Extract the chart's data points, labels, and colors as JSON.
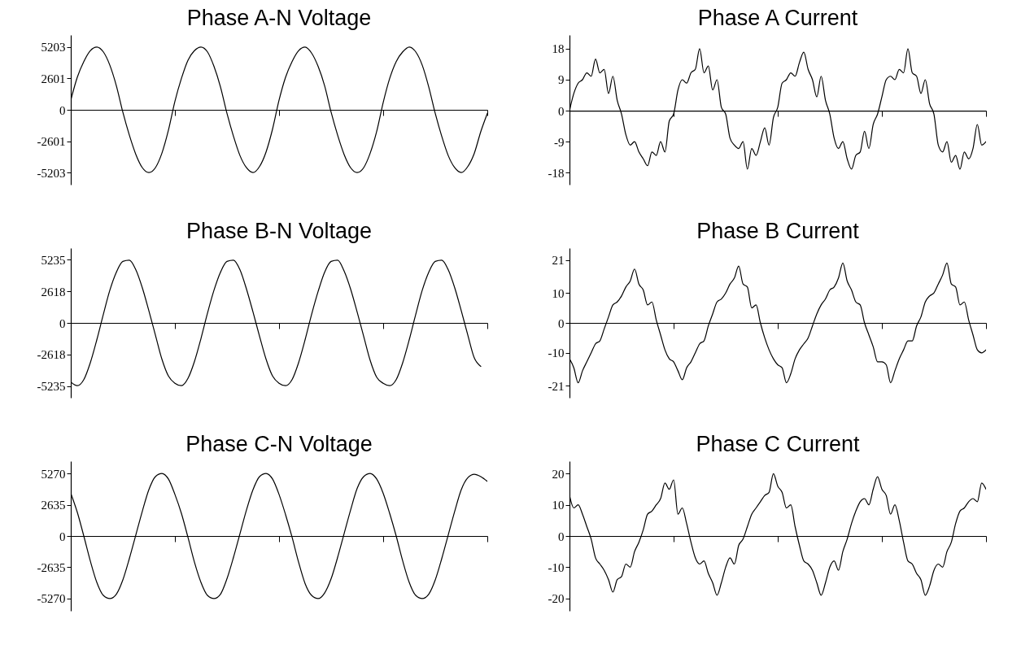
{
  "chart_data": [
    {
      "type": "line",
      "title": "Phase A-N Voltage",
      "tick_labels": "y",
      "color": "#000000",
      "ylim": [
        -6200,
        6200
      ],
      "yticks": [
        -5203,
        -2601,
        0,
        2601,
        5203
      ],
      "categories": [
        null,
        null,
        null,
        null,
        null,
        null,
        null,
        null,
        null,
        null,
        null,
        null,
        null,
        null,
        null,
        null,
        null,
        null,
        null,
        null,
        null,
        null,
        null,
        null,
        null,
        null,
        null,
        null,
        null,
        null,
        null,
        null,
        null,
        null,
        null,
        null,
        null,
        null,
        null,
        null,
        null,
        null,
        null,
        null,
        null,
        null,
        null,
        null,
        null,
        null,
        null,
        null,
        null,
        null,
        null,
        null,
        null,
        null,
        null,
        null,
        null,
        null,
        null,
        null,
        null
      ],
      "values": [
        800,
        2700,
        4000,
        4900,
        5200,
        4800,
        3700,
        2000,
        -200,
        -2100,
        -3700,
        -4800,
        -5200,
        -4800,
        -3600,
        -1700,
        700,
        2600,
        4100,
        4900,
        5200,
        4800,
        3600,
        1900,
        -300,
        -2200,
        -3800,
        -4800,
        -5200,
        -4700,
        -3500,
        -1600,
        800,
        2700,
        4000,
        4900,
        5200,
        4700,
        3600,
        2000,
        -200,
        -2100,
        -3700,
        -4800,
        -5200,
        -4800,
        -3600,
        -1800,
        600,
        2600,
        4000,
        4800,
        5200,
        4800,
        3700,
        1900,
        -300,
        -2200,
        -3800,
        -4800,
        -5200,
        -4700,
        -3600,
        -1800,
        -300
      ]
    },
    {
      "type": "line",
      "title": "Phase A Current",
      "tick_labels": "y",
      "color": "#000000",
      "ylim": [
        -21.5,
        22
      ],
      "yticks": [
        -18,
        -9,
        0,
        9,
        18
      ],
      "categories": [
        null,
        null,
        null,
        null,
        null,
        null,
        null,
        null,
        null,
        null,
        null,
        null,
        null,
        null,
        null,
        null,
        null,
        null,
        null,
        null,
        null,
        null,
        null,
        null,
        null,
        null,
        null,
        null,
        null,
        null,
        null,
        null,
        null,
        null,
        null,
        null,
        null,
        null,
        null,
        null,
        null,
        null,
        null,
        null,
        null,
        null,
        null,
        null,
        null,
        null,
        null,
        null,
        null,
        null,
        null,
        null,
        null,
        null,
        null,
        null,
        null,
        null,
        null,
        null,
        null,
        null,
        null,
        null,
        null,
        null,
        null,
        null,
        null,
        null,
        null,
        null,
        null,
        null,
        null,
        null,
        null,
        null,
        null,
        null,
        null,
        null,
        null,
        null,
        null,
        null,
        null,
        null,
        null,
        null,
        null,
        null,
        null
      ],
      "values": [
        0,
        5,
        8,
        9,
        11,
        10,
        15,
        11,
        12,
        5,
        10,
        3,
        -1,
        -7,
        -10,
        -9,
        -12,
        -14,
        -16,
        -12,
        -13,
        -9,
        -12,
        -3,
        -1,
        6,
        9,
        8,
        11,
        12,
        18,
        11,
        13,
        6,
        9,
        1,
        -1,
        -8,
        -10,
        -11,
        -9,
        -17,
        -11,
        -13,
        -9,
        -5,
        -10,
        -2,
        1,
        8,
        9,
        11,
        10,
        14,
        17,
        12,
        9,
        4,
        10,
        3,
        -1,
        -8,
        -11,
        -9,
        -14,
        -17,
        -13,
        -12,
        -6,
        -11,
        -4,
        -1,
        4,
        9,
        10,
        9,
        12,
        11,
        18,
        11,
        10,
        5,
        9,
        2,
        -1,
        -10,
        -12,
        -9,
        -15,
        -13,
        -17,
        -12,
        -14,
        -11,
        -4,
        -10,
        -9
      ]
    },
    {
      "type": "line",
      "title": "Phase B-N Voltage",
      "tick_labels": "y",
      "color": "#000000",
      "ylim": [
        -6200,
        6200
      ],
      "yticks": [
        -5235,
        -2618,
        0,
        2618,
        5235
      ],
      "categories": [
        null,
        null,
        null,
        null,
        null,
        null,
        null,
        null,
        null,
        null,
        null,
        null,
        null,
        null,
        null,
        null,
        null,
        null,
        null,
        null,
        null,
        null,
        null,
        null,
        null,
        null,
        null,
        null,
        null,
        null,
        null,
        null,
        null,
        null,
        null,
        null,
        null,
        null,
        null,
        null,
        null,
        null,
        null,
        null,
        null,
        null,
        null,
        null,
        null,
        null,
        null,
        null,
        null,
        null,
        null,
        null,
        null,
        null,
        null,
        null,
        null,
        null,
        null,
        null,
        null
      ],
      "values": [
        -4900,
        -5200,
        -4700,
        -3300,
        -1400,
        700,
        2700,
        4200,
        5100,
        5200,
        4400,
        2900,
        1000,
        -1000,
        -3000,
        -4400,
        -5000,
        -5200,
        -4600,
        -3200,
        -1300,
        800,
        2700,
        4200,
        5100,
        5200,
        4400,
        2800,
        900,
        -1100,
        -3000,
        -4400,
        -5000,
        -5200,
        -4700,
        -3300,
        -1400,
        700,
        2600,
        4200,
        5100,
        5200,
        4300,
        2800,
        900,
        -1100,
        -3100,
        -4500,
        -5000,
        -5200,
        -4700,
        -3300,
        -1400,
        700,
        2700,
        4200,
        5100,
        5200,
        4400,
        2900,
        1000,
        -1000,
        -2900,
        -3600,
        null
      ]
    },
    {
      "type": "line",
      "title": "Phase B Current",
      "tick_labels": "y",
      "color": "#000000",
      "ylim": [
        -25,
        25
      ],
      "yticks": [
        -21,
        -10,
        0,
        10,
        21
      ],
      "categories": [
        null,
        null,
        null,
        null,
        null,
        null,
        null,
        null,
        null,
        null,
        null,
        null,
        null,
        null,
        null,
        null,
        null,
        null,
        null,
        null,
        null,
        null,
        null,
        null,
        null,
        null,
        null,
        null,
        null,
        null,
        null,
        null,
        null,
        null,
        null,
        null,
        null,
        null,
        null,
        null,
        null,
        null,
        null,
        null,
        null,
        null,
        null,
        null,
        null,
        null,
        null,
        null,
        null,
        null,
        null,
        null,
        null,
        null,
        null,
        null,
        null,
        null,
        null,
        null,
        null,
        null,
        null,
        null,
        null,
        null,
        null,
        null,
        null,
        null,
        null,
        null,
        null,
        null,
        null,
        null,
        null,
        null,
        null,
        null,
        null,
        null,
        null,
        null,
        null,
        null,
        null,
        null,
        null,
        null,
        null,
        null,
        null
      ],
      "values": [
        -12,
        -15,
        -20,
        -16,
        -13,
        -10,
        -7,
        -6,
        -2,
        2,
        6,
        7,
        9,
        12,
        14,
        18,
        13,
        11,
        6,
        7,
        1,
        -4,
        -9,
        -12,
        -13,
        -16,
        -19,
        -15,
        -13,
        -10,
        -7,
        -6,
        -1,
        3,
        7,
        8,
        10,
        13,
        15,
        19,
        13,
        12,
        5,
        6,
        0,
        -5,
        -9,
        -12,
        -14,
        -15,
        -20,
        -17,
        -12,
        -9,
        -7,
        -5,
        -1,
        3,
        6,
        8,
        11,
        12,
        15,
        20,
        14,
        11,
        7,
        6,
        0,
        -4,
        -8,
        -13,
        -13,
        -14,
        -20,
        -16,
        -12,
        -9,
        -6,
        -6,
        -1,
        2,
        7,
        9,
        10,
        13,
        16,
        20,
        13,
        12,
        6,
        7,
        1,
        -4,
        -9,
        -10,
        -9
      ]
    },
    {
      "type": "line",
      "title": "Phase C-N Voltage",
      "tick_labels": "y",
      "color": "#000000",
      "ylim": [
        -6300,
        6300
      ],
      "yticks": [
        -5270,
        -2635,
        0,
        2635,
        5270
      ],
      "categories": [
        null,
        null,
        null,
        null,
        null,
        null,
        null,
        null,
        null,
        null,
        null,
        null,
        null,
        null,
        null,
        null,
        null,
        null,
        null,
        null,
        null,
        null,
        null,
        null,
        null,
        null,
        null,
        null,
        null,
        null,
        null,
        null,
        null,
        null,
        null,
        null,
        null,
        null,
        null,
        null,
        null,
        null,
        null,
        null,
        null,
        null,
        null,
        null,
        null,
        null,
        null,
        null,
        null,
        null,
        null,
        null,
        null,
        null,
        null,
        null,
        null,
        null,
        null,
        null,
        null
      ],
      "values": [
        3600,
        2000,
        0,
        -2100,
        -3900,
        -5000,
        -5270,
        -4900,
        -3700,
        -1900,
        100,
        2100,
        3900,
        5000,
        5270,
        4800,
        3500,
        1900,
        -100,
        -2200,
        -3900,
        -5000,
        -5270,
        -4900,
        -3600,
        -1800,
        200,
        2200,
        3900,
        5000,
        5270,
        4800,
        3500,
        1800,
        -100,
        -2200,
        -4000,
        -5000,
        -5270,
        -4800,
        -3600,
        -1800,
        200,
        2200,
        4000,
        5000,
        5270,
        4800,
        3600,
        1900,
        0,
        -2100,
        -3900,
        -5000,
        -5270,
        -4900,
        -3700,
        -1900,
        100,
        2100,
        3900,
        4900,
        5200,
        5000,
        4600
      ]
    },
    {
      "type": "line",
      "title": "Phase C Current",
      "tick_labels": "y",
      "color": "#000000",
      "ylim": [
        -24,
        24
      ],
      "yticks": [
        -20,
        -10,
        0,
        10,
        20
      ],
      "categories": [
        null,
        null,
        null,
        null,
        null,
        null,
        null,
        null,
        null,
        null,
        null,
        null,
        null,
        null,
        null,
        null,
        null,
        null,
        null,
        null,
        null,
        null,
        null,
        null,
        null,
        null,
        null,
        null,
        null,
        null,
        null,
        null,
        null,
        null,
        null,
        null,
        null,
        null,
        null,
        null,
        null,
        null,
        null,
        null,
        null,
        null,
        null,
        null,
        null,
        null,
        null,
        null,
        null,
        null,
        null,
        null,
        null,
        null,
        null,
        null,
        null,
        null,
        null,
        null,
        null,
        null,
        null,
        null,
        null,
        null,
        null,
        null,
        null,
        null,
        null,
        null,
        null,
        null,
        null,
        null,
        null,
        null,
        null,
        null,
        null,
        null,
        null,
        null,
        null,
        null,
        null,
        null,
        null,
        null,
        null,
        null,
        null
      ],
      "values": [
        13,
        9,
        10,
        7,
        3,
        -1,
        -7,
        -9,
        -11,
        -14,
        -18,
        -14,
        -13,
        -9,
        -10,
        -5,
        -2,
        2,
        7,
        8,
        10,
        12,
        17,
        15,
        18,
        7,
        9,
        4,
        -2,
        -7,
        -9,
        -8,
        -12,
        -15,
        -19,
        -15,
        -10,
        -7,
        -9,
        -3,
        -1,
        3,
        7,
        9,
        11,
        13,
        14,
        20,
        16,
        14,
        9,
        10,
        3,
        -3,
        -8,
        -9,
        -11,
        -15,
        -19,
        -15,
        -10,
        -8,
        -11,
        -5,
        -1,
        4,
        8,
        11,
        12,
        10,
        15,
        19,
        15,
        13,
        7,
        10,
        5,
        -2,
        -8,
        -9,
        -12,
        -14,
        -19,
        -16,
        -11,
        -9,
        -10,
        -5,
        -2,
        4,
        8,
        9,
        11,
        12,
        11,
        17,
        15
      ]
    }
  ]
}
